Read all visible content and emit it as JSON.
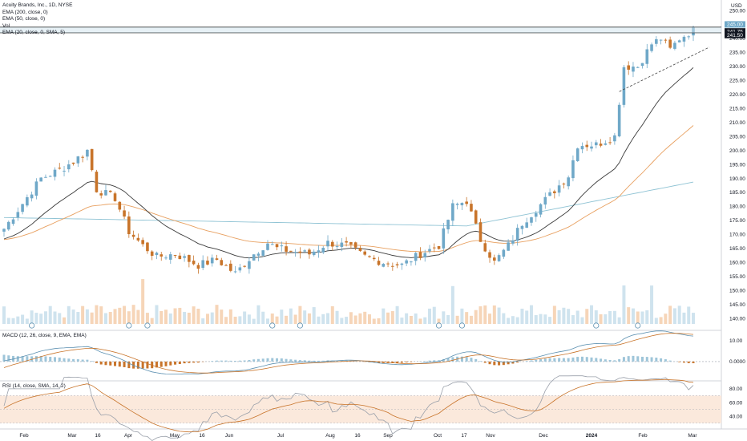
{
  "header": {
    "symbol": "Acuity Brands, Inc., 1D, NYSE",
    "indicators": [
      "EMA (200, close, 0)",
      "EMA (50, close, 0)",
      "Vol",
      "EMA (20, close, 0, SMA, 5)"
    ],
    "currency": "USD"
  },
  "panes": {
    "macd_label": "MACD (12, 26, close, 9, EMA, EMA)",
    "rsi_label": "RSI (14, close, SMA, 14, 2)"
  },
  "colors": {
    "up": "#6fa8c8",
    "down": "#c8742a",
    "ema20": "#3a3a3a",
    "ema50": "#e8a060",
    "ema200": "#8fc3d4",
    "rsi_band": "#fbe9dc",
    "axis_text": "#131722"
  },
  "chart_data": {
    "type": "candlestick",
    "title": "Acuity Brands, Inc., 1D, NYSE",
    "x_ticks": [
      "Feb",
      "Mar",
      "16",
      "Apr",
      "May",
      "16",
      "Jun",
      "Jul",
      "Aug",
      "16",
      "Sep",
      "Oct",
      "17",
      "Nov",
      "Dec",
      "2024",
      "Feb",
      "Mar"
    ],
    "price_axis": {
      "ticks": [
        140,
        145,
        150,
        155,
        160,
        165,
        170,
        175,
        180,
        185,
        190,
        195,
        200,
        205,
        210,
        215,
        220,
        225,
        230,
        235,
        240,
        245,
        250
      ],
      "ylim": [
        138,
        252
      ],
      "labels_shown": [
        "140.00",
        "145.00",
        "150.00",
        "155.00",
        "160.00",
        "165.00",
        "170.00",
        "175.00",
        "180.00",
        "185.00",
        "190.00",
        "195.00",
        "200.00",
        "205.00",
        "210.00",
        "215.00",
        "220.00",
        "225.00",
        "230.00",
        "235.00",
        "240.00",
        "245.00",
        "250.00"
      ],
      "current_price_tags": [
        "245.00",
        "241.75",
        "241.50"
      ]
    },
    "horizontal_levels": [
      244,
      242
    ],
    "macd_axis": {
      "ticks": [
        "10.00",
        "0.0000"
      ],
      "ylim": [
        -8,
        14
      ]
    },
    "rsi_axis": {
      "ticks": [
        "80.00",
        "60.00",
        "40.00"
      ],
      "band": [
        30,
        70
      ],
      "ylim": [
        25,
        88
      ]
    },
    "anchors": [
      {
        "i": 0,
        "p": 172
      },
      {
        "i": 8,
        "p": 190
      },
      {
        "i": 12,
        "p": 193
      },
      {
        "i": 15,
        "p": 196
      },
      {
        "i": 18,
        "p": 200
      },
      {
        "i": 20,
        "p": 186
      },
      {
        "i": 24,
        "p": 183
      },
      {
        "i": 27,
        "p": 171
      },
      {
        "i": 30,
        "p": 166
      },
      {
        "i": 33,
        "p": 162
      },
      {
        "i": 37,
        "p": 163
      },
      {
        "i": 42,
        "p": 159
      },
      {
        "i": 46,
        "p": 161
      },
      {
        "i": 50,
        "p": 156
      },
      {
        "i": 54,
        "p": 163
      },
      {
        "i": 57,
        "p": 167
      },
      {
        "i": 59,
        "p": 165
      },
      {
        "i": 62,
        "p": 164
      },
      {
        "i": 66,
        "p": 163
      },
      {
        "i": 70,
        "p": 167
      },
      {
        "i": 74,
        "p": 166
      },
      {
        "i": 78,
        "p": 162
      },
      {
        "i": 82,
        "p": 160
      },
      {
        "i": 86,
        "p": 159
      },
      {
        "i": 90,
        "p": 163
      },
      {
        "i": 94,
        "p": 166
      },
      {
        "i": 97,
        "p": 180
      },
      {
        "i": 100,
        "p": 182
      },
      {
        "i": 103,
        "p": 168
      },
      {
        "i": 106,
        "p": 160
      },
      {
        "i": 109,
        "p": 166
      },
      {
        "i": 112,
        "p": 174
      },
      {
        "i": 115,
        "p": 179
      },
      {
        "i": 118,
        "p": 184
      },
      {
        "i": 122,
        "p": 191
      },
      {
        "i": 124,
        "p": 202
      },
      {
        "i": 128,
        "p": 202
      },
      {
        "i": 132,
        "p": 205
      },
      {
        "i": 134,
        "p": 230
      },
      {
        "i": 137,
        "p": 230
      },
      {
        "i": 140,
        "p": 238
      },
      {
        "i": 142,
        "p": 240
      },
      {
        "i": 144,
        "p": 236
      },
      {
        "i": 146,
        "p": 240
      },
      {
        "i": 148,
        "p": 242
      },
      {
        "i": 149,
        "p": 244
      }
    ],
    "trendlines": [
      {
        "from": {
          "i": 133,
          "p": 221
        },
        "to": {
          "i": 149,
          "p": 238
        }
      }
    ]
  }
}
